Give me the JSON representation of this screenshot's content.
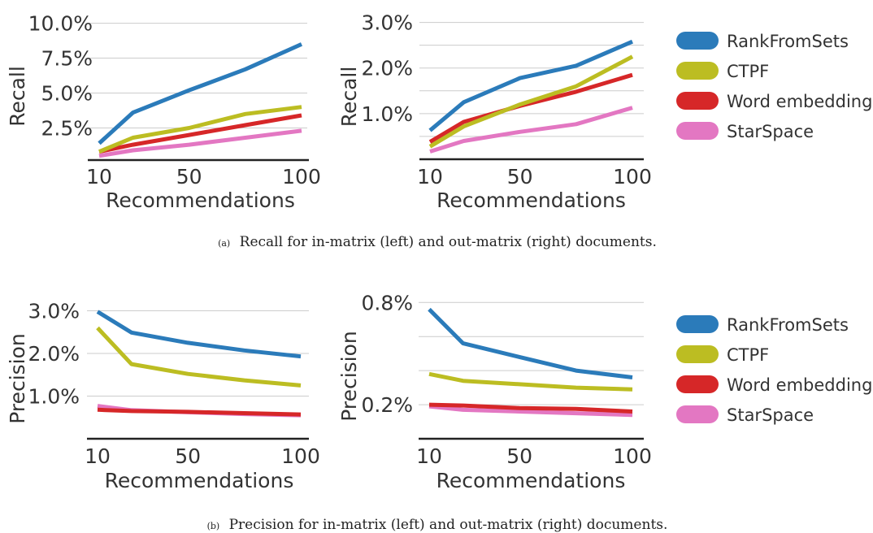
{
  "colors": {
    "RankFromSets": "#2b7bba",
    "CTPF": "#bcbd22",
    "Word embedding": "#d62728",
    "StarSpace": "#e377c2"
  },
  "legend_top": [
    "RankFromSets",
    "CTPF",
    "Word embedding",
    "StarSpace"
  ],
  "legend_bottom": [
    "RankFromSets",
    "CTPF",
    "Word embedding",
    "StarSpace"
  ],
  "captions": {
    "a_letter": "(a)",
    "a_text": "Recall for in-matrix (left) and out-matrix (right) documents.",
    "b_letter": "(b)",
    "b_text": "Precision for in-matrix (left) and out-matrix (right) documents."
  },
  "chart_data": [
    {
      "type": "line",
      "xlabel": "Recommendations",
      "ylabel": "Recall",
      "xlim": [
        10,
        100
      ],
      "ylim": [
        0.2,
        10.5
      ],
      "xticks": [
        10,
        50,
        100
      ],
      "xtick_labels": [
        "10",
        "50",
        "100"
      ],
      "yticks": [
        2.5,
        5.0,
        7.5,
        10.0
      ],
      "ytick_labels": [
        "2.5%",
        "5.0%",
        "7.5%",
        "10.0%"
      ],
      "grid": "horizontal",
      "x": [
        10,
        25,
        50,
        75,
        100
      ],
      "series": [
        {
          "name": "RankFromSets",
          "values": [
            1.4,
            3.6,
            5.2,
            6.7,
            8.5
          ]
        },
        {
          "name": "CTPF",
          "values": [
            0.8,
            1.8,
            2.5,
            3.5,
            4.0
          ]
        },
        {
          "name": "Word embedding",
          "values": [
            0.8,
            1.3,
            2.0,
            2.7,
            3.4
          ]
        },
        {
          "name": "StarSpace",
          "values": [
            0.5,
            0.9,
            1.3,
            1.8,
            2.3
          ]
        }
      ]
    },
    {
      "type": "line",
      "xlabel": "Recommendations",
      "ylabel": "Recall",
      "xlim": [
        10,
        100
      ],
      "ylim": [
        0.0,
        3.1
      ],
      "xticks": [
        10,
        50,
        100
      ],
      "xtick_labels": [
        "10",
        "50",
        "100"
      ],
      "yticks": [
        0.5,
        1.0,
        1.5,
        2.0,
        2.5,
        3.0
      ],
      "ytick_labels": [
        "",
        "1.0%",
        "",
        "2.0%",
        "",
        "3.0%"
      ],
      "grid": "horizontal",
      "x": [
        10,
        25,
        50,
        75,
        100
      ],
      "series": [
        {
          "name": "RankFromSets",
          "values": [
            0.63,
            1.25,
            1.78,
            2.05,
            2.58
          ]
        },
        {
          "name": "CTPF",
          "values": [
            0.28,
            0.72,
            1.2,
            1.6,
            2.25
          ]
        },
        {
          "name": "Word embedding",
          "values": [
            0.38,
            0.82,
            1.17,
            1.48,
            1.85
          ]
        },
        {
          "name": "StarSpace",
          "values": [
            0.17,
            0.4,
            0.6,
            0.77,
            1.13
          ]
        }
      ]
    },
    {
      "type": "line",
      "xlabel": "Recommendations",
      "ylabel": "Precision",
      "xlim": [
        10,
        100
      ],
      "ylim": [
        0.0,
        3.2
      ],
      "xticks": [
        10,
        50,
        100
      ],
      "xtick_labels": [
        "10",
        "50",
        "100"
      ],
      "yticks": [
        1.0,
        2.0,
        3.0
      ],
      "ytick_labels": [
        "1.0%",
        "2.0%",
        "3.0%"
      ],
      "grid": "horizontal",
      "x": [
        10,
        25,
        50,
        75,
        100
      ],
      "series": [
        {
          "name": "RankFromSets",
          "values": [
            2.98,
            2.49,
            2.25,
            2.07,
            1.93
          ]
        },
        {
          "name": "CTPF",
          "values": [
            2.6,
            1.75,
            1.52,
            1.37,
            1.25
          ]
        },
        {
          "name": "Word embedding",
          "values": [
            0.68,
            0.65,
            0.63,
            0.6,
            0.57
          ]
        },
        {
          "name": "StarSpace",
          "values": [
            0.77,
            0.67,
            0.62,
            0.58,
            0.55
          ]
        }
      ]
    },
    {
      "type": "line",
      "xlabel": "Recommendations",
      "ylabel": "Precision",
      "xlim": [
        10,
        100
      ],
      "ylim": [
        0.0,
        0.83
      ],
      "xticks": [
        10,
        50,
        100
      ],
      "xtick_labels": [
        "10",
        "50",
        "100"
      ],
      "yticks": [
        0.2,
        0.4,
        0.6,
        0.8
      ],
      "ytick_labels": [
        "0.2%",
        "",
        "",
        "0.8%"
      ],
      "grid": "horizontal",
      "x": [
        10,
        25,
        50,
        75,
        100
      ],
      "series": [
        {
          "name": "RankFromSets",
          "values": [
            0.76,
            0.56,
            0.48,
            0.4,
            0.36
          ]
        },
        {
          "name": "CTPF",
          "values": [
            0.38,
            0.34,
            0.32,
            0.3,
            0.29
          ]
        },
        {
          "name": "Word embedding",
          "values": [
            0.2,
            0.195,
            0.18,
            0.175,
            0.16
          ]
        },
        {
          "name": "StarSpace",
          "values": [
            0.19,
            0.17,
            0.16,
            0.15,
            0.14
          ]
        }
      ]
    }
  ]
}
